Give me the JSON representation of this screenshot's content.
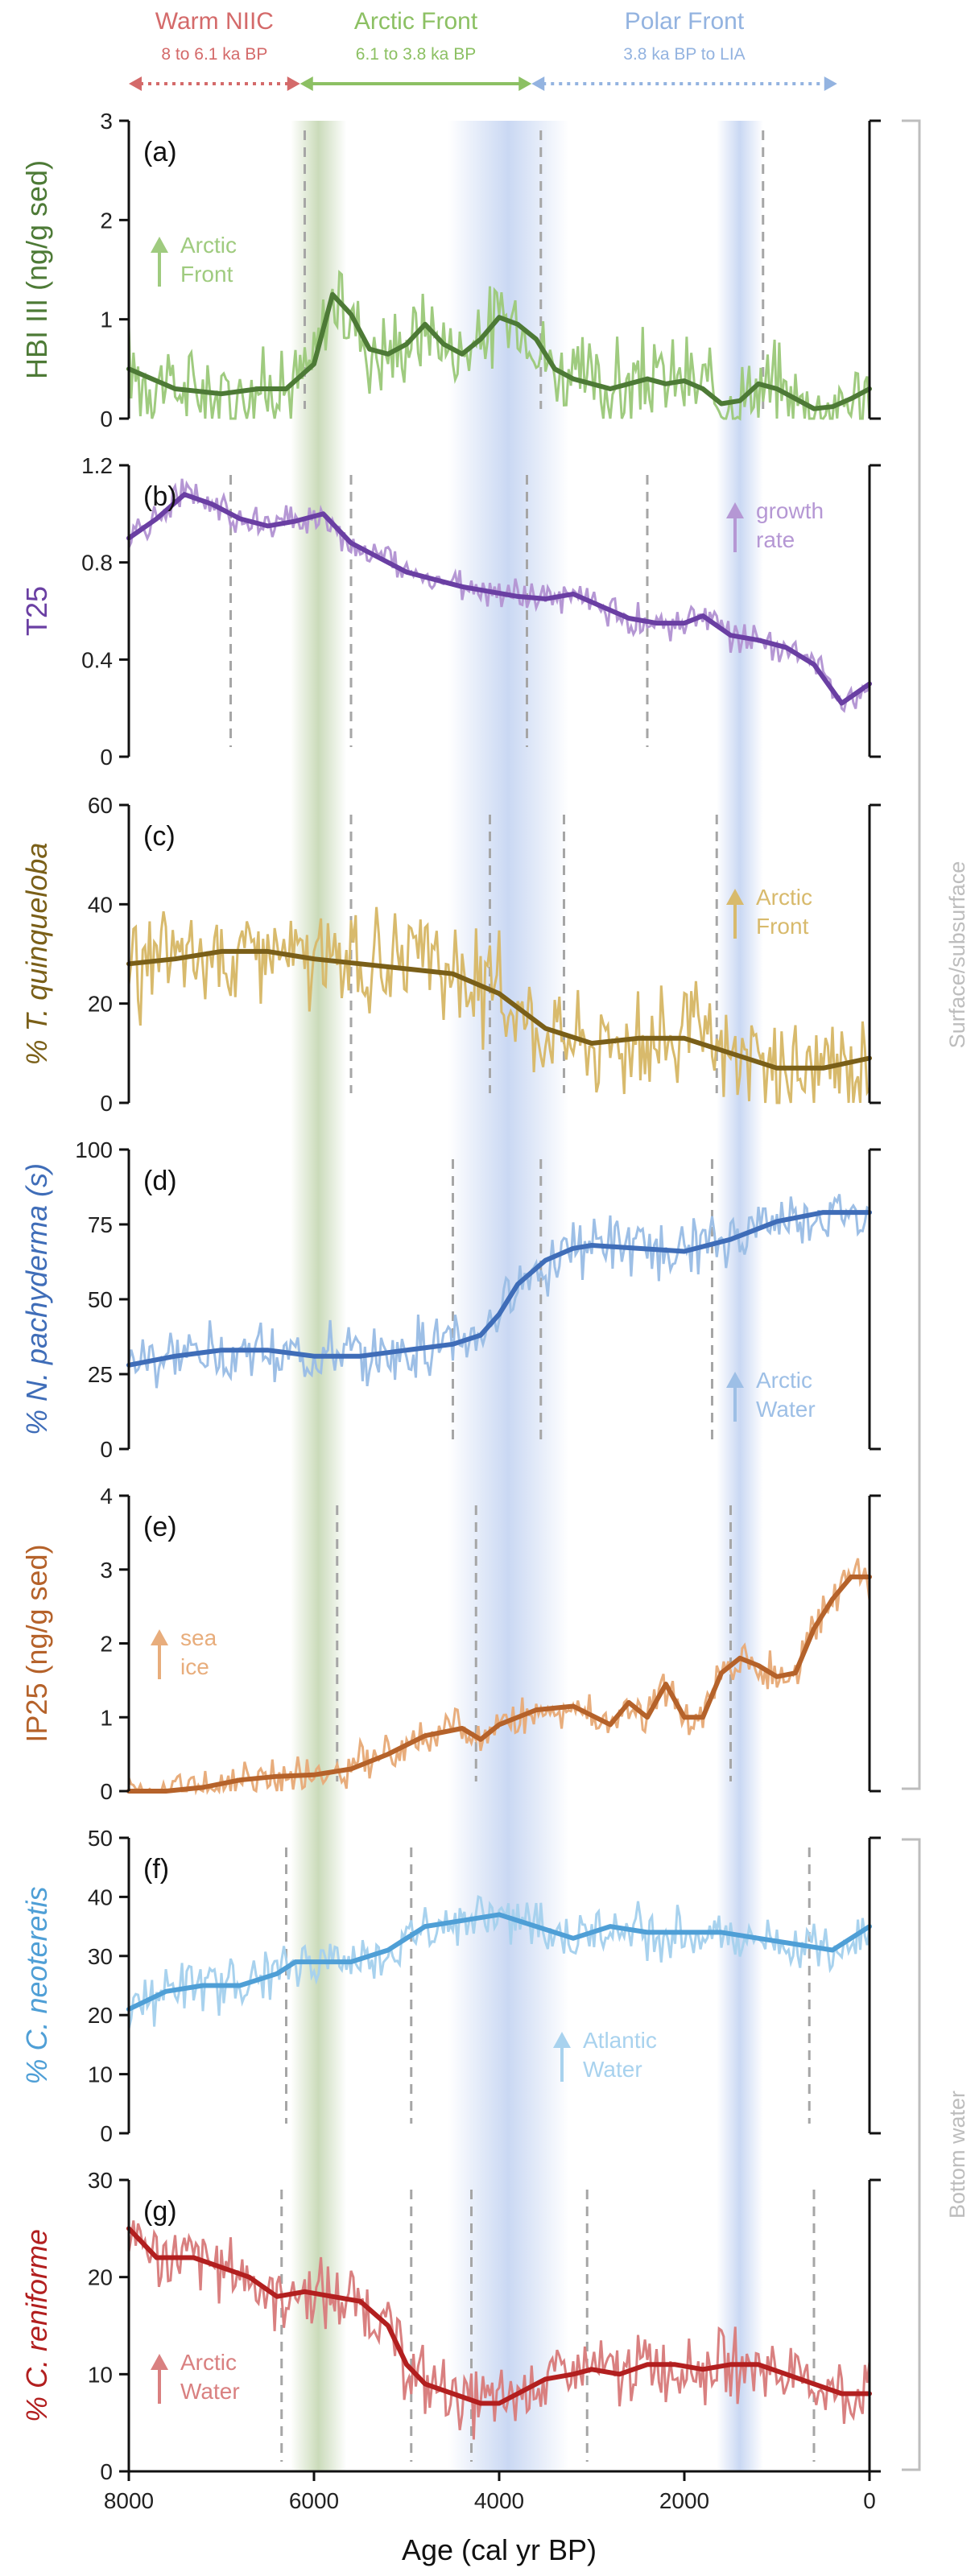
{
  "phases": [
    {
      "title": "Warm NIIC",
      "subtitle": "8 to 6.1 ka BP",
      "color": "#d46a6a",
      "from": 8000,
      "to": 6150,
      "dotted": true
    },
    {
      "title": "Arctic Front",
      "subtitle": "6.1 to 3.8 ka BP",
      "color": "#8cc063",
      "from": 6150,
      "to": 3650,
      "dotted": false
    },
    {
      "title": "Polar Front",
      "subtitle": "3.8 ka BP to LIA",
      "color": "#93b3e0",
      "from": 3650,
      "to": 350,
      "dotted": true
    }
  ],
  "bands": [
    {
      "from": 6250,
      "to": 5650,
      "color": "#b9cfa3"
    },
    {
      "from": 4550,
      "to": 3250,
      "color": "#b8cbef"
    },
    {
      "from": 1650,
      "to": 1150,
      "color": "#b8cbef"
    }
  ],
  "side_labels": {
    "surface": "Surface/subsurface",
    "bottom": "Bottom water"
  },
  "x_axis": {
    "title": "Age (cal yr BP)",
    "ticks": [
      "8000",
      "6000",
      "4000",
      "2000",
      "0"
    ]
  },
  "chart_data": [
    {
      "type": "line",
      "panel": "(a)",
      "ylabel": "HBI III (ng/g sed)",
      "color": "#4d7a36",
      "raw_color": "#9fcb7f",
      "ylim": [
        0,
        3
      ],
      "yticks": [
        "0",
        "1",
        "2",
        "3"
      ],
      "annotation": {
        "text": [
          "Arctic",
          "Front"
        ],
        "direction": "up"
      },
      "breaks": [
        6100,
        3550,
        1150
      ],
      "series": [
        {
          "x": [
            8000,
            7500,
            7000,
            6600,
            6300,
            6000,
            5800,
            5600,
            5400,
            5200,
            5000,
            4800,
            4600,
            4400,
            4200,
            4000,
            3800,
            3600,
            3400,
            3200,
            3000,
            2800,
            2600,
            2400,
            2200,
            2000,
            1800,
            1600,
            1400,
            1200,
            1000,
            800,
            600,
            400,
            200,
            0
          ],
          "values": [
            0.5,
            0.3,
            0.25,
            0.3,
            0.3,
            0.55,
            1.25,
            1.05,
            0.7,
            0.65,
            0.75,
            0.95,
            0.75,
            0.65,
            0.8,
            1.02,
            0.95,
            0.8,
            0.5,
            0.4,
            0.35,
            0.3,
            0.35,
            0.4,
            0.35,
            0.38,
            0.3,
            0.15,
            0.18,
            0.35,
            0.3,
            0.2,
            0.1,
            0.12,
            0.2,
            0.3
          ]
        }
      ]
    },
    {
      "type": "line",
      "panel": "(b)",
      "ylabel": "T25",
      "color": "#6a3fa3",
      "raw_color": "#b597d4",
      "ylim": [
        0,
        1.2
      ],
      "yticks": [
        "0",
        "0.4",
        "0.8",
        "1.2"
      ],
      "annotation": {
        "text": [
          "growth",
          "rate"
        ],
        "direction": "up"
      },
      "breaks": [
        6900,
        5600,
        3700,
        2400
      ],
      "series": [
        {
          "x": [
            8000,
            7700,
            7400,
            7100,
            6800,
            6500,
            6200,
            5900,
            5600,
            5300,
            5000,
            4700,
            4400,
            4100,
            3800,
            3500,
            3200,
            2900,
            2600,
            2300,
            2000,
            1800,
            1500,
            1200,
            900,
            600,
            300,
            0
          ],
          "values": [
            0.9,
            0.98,
            1.08,
            1.04,
            0.98,
            0.95,
            0.97,
            1.0,
            0.88,
            0.82,
            0.76,
            0.73,
            0.7,
            0.68,
            0.66,
            0.65,
            0.67,
            0.62,
            0.57,
            0.55,
            0.55,
            0.58,
            0.5,
            0.48,
            0.45,
            0.38,
            0.22,
            0.3
          ]
        }
      ]
    },
    {
      "type": "line",
      "panel": "(c)",
      "ylabel": "% T. quinqueloba",
      "color": "#7a5f18",
      "raw_color": "#d8ba6c",
      "ylim": [
        0,
        60
      ],
      "yticks": [
        "0",
        "20",
        "40",
        "60"
      ],
      "annotation": {
        "text": [
          "Arctic",
          "Front"
        ],
        "direction": "up"
      },
      "breaks": [
        5600,
        4100,
        3300,
        1650
      ],
      "series": [
        {
          "x": [
            8000,
            7500,
            7000,
            6500,
            6000,
            5500,
            5000,
            4500,
            4000,
            3500,
            3000,
            2500,
            2000,
            1500,
            1000,
            500,
            0
          ],
          "values": [
            28,
            29,
            30.5,
            30.5,
            29,
            28,
            27,
            26,
            22,
            15,
            12,
            13,
            13,
            10,
            7,
            7,
            9
          ]
        }
      ]
    },
    {
      "type": "line",
      "panel": "(d)",
      "ylabel": "% N. pachyderma (s)",
      "color": "#3f6db8",
      "raw_color": "#9dbfe6",
      "ylim": [
        0,
        100
      ],
      "yticks": [
        "0",
        "25",
        "50",
        "75",
        "100"
      ],
      "annotation": {
        "text": [
          "Arctic",
          "Water"
        ],
        "direction": "up"
      },
      "breaks": [
        4500,
        3550,
        1700
      ],
      "series": [
        {
          "x": [
            8000,
            7500,
            7000,
            6500,
            6000,
            5500,
            5000,
            4500,
            4200,
            4000,
            3800,
            3500,
            3200,
            3000,
            2500,
            2000,
            1500,
            1000,
            500,
            0
          ],
          "values": [
            28,
            31,
            33,
            33,
            31,
            31,
            33,
            35,
            38,
            45,
            55,
            63,
            67,
            68,
            67,
            66,
            70,
            76,
            79,
            79
          ]
        }
      ]
    },
    {
      "type": "line",
      "panel": "(e)",
      "ylabel": "IP25 (ng/g sed)",
      "color": "#b5622a",
      "raw_color": "#e8ad7c",
      "ylim": [
        0,
        4
      ],
      "yticks": [
        "0",
        "1",
        "2",
        "3",
        "4"
      ],
      "annotation": {
        "text": [
          "sea",
          "ice"
        ],
        "direction": "up"
      },
      "breaks": [
        5750,
        4250,
        1500
      ],
      "series": [
        {
          "x": [
            8000,
            7600,
            7200,
            6800,
            6400,
            6000,
            5600,
            5200,
            4800,
            4400,
            4200,
            4000,
            3600,
            3200,
            2800,
            2600,
            2400,
            2200,
            2000,
            1800,
            1600,
            1400,
            1200,
            1000,
            800,
            600,
            400,
            200,
            0
          ],
          "values": [
            0,
            0,
            0.05,
            0.15,
            0.2,
            0.22,
            0.3,
            0.5,
            0.75,
            0.85,
            0.7,
            0.9,
            1.1,
            1.15,
            0.9,
            1.2,
            1.0,
            1.45,
            1.0,
            1.0,
            1.6,
            1.8,
            1.7,
            1.55,
            1.6,
            2.2,
            2.6,
            2.9,
            2.9
          ]
        }
      ]
    },
    {
      "type": "line",
      "panel": "(f)",
      "ylabel": "% C. neoteretis",
      "color": "#4f9fd6",
      "raw_color": "#a8d2ee",
      "ylim": [
        0,
        50
      ],
      "yticks": [
        "0",
        "10",
        "20",
        "30",
        "40",
        "50"
      ],
      "annotation": {
        "text": [
          "Atlantic",
          "Water"
        ],
        "direction": "up"
      },
      "breaks": [
        6300,
        4950,
        650
      ],
      "series": [
        {
          "x": [
            8000,
            7600,
            7200,
            6800,
            6400,
            6200,
            6000,
            5600,
            5200,
            4800,
            4400,
            4000,
            3600,
            3200,
            2800,
            2400,
            2000,
            1600,
            1200,
            800,
            400,
            0
          ],
          "values": [
            21,
            24,
            25,
            25,
            27,
            29,
            29,
            29,
            31,
            35,
            36,
            37,
            35,
            33,
            35,
            34,
            34,
            34,
            33,
            32,
            31,
            35
          ]
        }
      ]
    },
    {
      "type": "line",
      "panel": "(g)",
      "ylabel": "% C. reniforme",
      "color": "#b21f1f",
      "raw_color": "#d98080",
      "ylim": [
        0,
        30
      ],
      "yticks": [
        "0",
        "10",
        "20",
        "30"
      ],
      "annotation": {
        "text": [
          "Arctic",
          "Water"
        ],
        "direction": "up"
      },
      "breaks": [
        6350,
        4950,
        4300,
        3050,
        600
      ],
      "series": [
        {
          "x": [
            8000,
            7700,
            7300,
            7000,
            6700,
            6400,
            6100,
            5800,
            5500,
            5200,
            5000,
            4800,
            4500,
            4200,
            4000,
            3800,
            3500,
            3200,
            3000,
            2700,
            2400,
            2100,
            1800,
            1500,
            1200,
            900,
            600,
            300,
            0
          ],
          "values": [
            25,
            22,
            22,
            21,
            20,
            18,
            18.5,
            18,
            17.5,
            15,
            11,
            9,
            8,
            7,
            7,
            8,
            9.5,
            10,
            10.5,
            10,
            11,
            11,
            10.5,
            11,
            11,
            10,
            9,
            8,
            8
          ]
        }
      ]
    }
  ]
}
